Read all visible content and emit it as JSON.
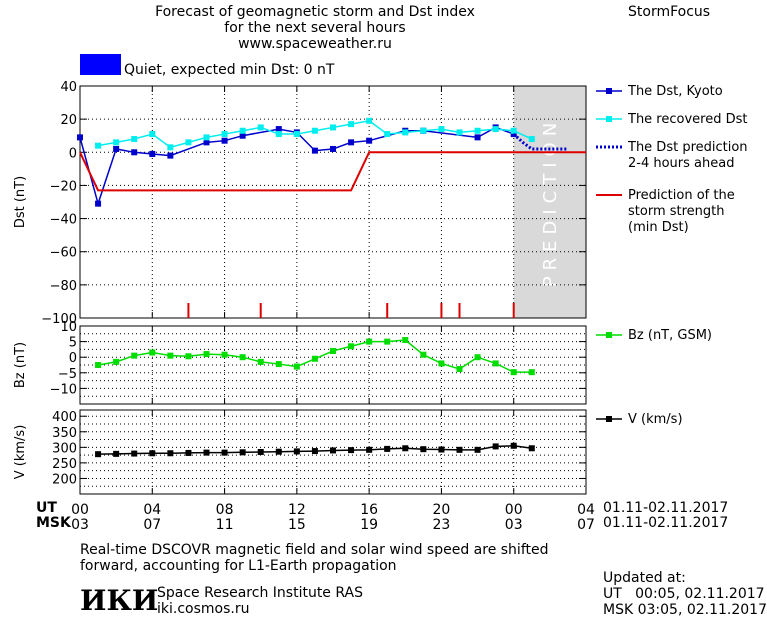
{
  "header": {
    "title_line1": "Forecast of geomagnetic storm and Dst index",
    "title_line2": "for the next several hours",
    "site": "www.spaceweather.ru",
    "brand": "StormFocus",
    "status_color": "#0000FF",
    "status_text": "Quiet, expected min Dst: 0 nT"
  },
  "colors": {
    "dst": "#0000CC",
    "recovered": "#00EEEE",
    "prediction": "#0000CC",
    "storm": "#DD0000",
    "bz": "#00DD00",
    "v": "#000000",
    "prediction_band": "#D9D9D9"
  },
  "legend": {
    "dst": "The Dst, Kyoto",
    "recovered": "The recovered Dst",
    "prediction_l1": "The Dst prediction",
    "prediction_l2": "2-4 hours ahead",
    "storm_l1": "Prediction of the",
    "storm_l2": "storm strength",
    "storm_l3": "(min Dst)",
    "bz": "Bz (nT, GSM)",
    "v": "V (km/s)"
  },
  "prediction_label": "PREDICTION",
  "time_axis": {
    "ut_label": "UT",
    "msk_label": "MSK",
    "ut_ticks": [
      "00",
      "04",
      "08",
      "12",
      "16",
      "20",
      "00",
      "04"
    ],
    "msk_ticks": [
      "03",
      "07",
      "11",
      "15",
      "19",
      "23",
      "03",
      "07"
    ],
    "tick_hours": [
      0,
      4,
      8,
      12,
      16,
      20,
      24,
      28
    ],
    "ut_range": "01.11-02.11.2017",
    "msk_range": "01.11-02.11.2017"
  },
  "footer": {
    "note_l1": "Real-time DSCOVR magnetic field and solar wind speed are shifted",
    "note_l2": "forward, accounting for L1-Earth propagation",
    "logo": "ИКИ",
    "institute": "Space Research Institute RAS",
    "institute_url": "iki.cosmos.ru",
    "updated_label": "Updated at:",
    "updated_ut": "UT   00:05, 02.11.2017",
    "updated_msk": "MSK 03:05, 02.11.2017"
  },
  "chart_data": [
    {
      "type": "line",
      "ylabel": "Dst (nT)",
      "xlim": [
        0,
        28
      ],
      "ylim": [
        -100,
        40
      ],
      "yticks": [
        -100,
        -80,
        -60,
        -40,
        -20,
        0,
        20,
        40
      ],
      "prediction_start_hour": 24,
      "series": [
        {
          "name": "The Dst, Kyoto",
          "x": [
            0,
            1,
            2,
            3,
            4,
            5,
            7,
            8,
            9,
            11,
            12,
            13,
            14,
            15,
            16,
            18,
            19,
            22,
            23,
            24
          ],
          "y": [
            9,
            -31,
            2,
            0,
            -1,
            -2,
            6,
            7,
            10,
            14,
            12,
            1,
            2,
            6,
            7,
            13,
            13,
            9,
            15,
            11
          ]
        },
        {
          "name": "The recovered Dst",
          "x": [
            1,
            2,
            3,
            4,
            5,
            6,
            7,
            8,
            9,
            10,
            11,
            12,
            13,
            14,
            15,
            16,
            17,
            18,
            19,
            20,
            21,
            22,
            23,
            24,
            25
          ],
          "y": [
            4,
            6,
            8,
            11,
            3,
            6,
            9,
            11,
            13,
            15,
            11,
            11,
            13,
            15,
            17,
            19,
            11,
            12,
            13,
            14,
            12,
            13,
            14,
            13,
            8
          ]
        },
        {
          "name": "The Dst prediction",
          "x": [
            24,
            24.5,
            25,
            26,
            27
          ],
          "y": [
            11,
            6,
            2,
            2,
            2
          ]
        },
        {
          "name": "Prediction of the storm strength",
          "x": [
            0,
            1,
            15,
            16,
            28
          ],
          "y": [
            0,
            -23,
            -23,
            0,
            0
          ]
        }
      ],
      "storm_marks_hours": [
        6,
        10,
        17,
        20,
        21,
        24
      ]
    },
    {
      "type": "line",
      "ylabel": "Bz (nT)",
      "xlim": [
        0,
        28
      ],
      "ylim": [
        -15,
        10
      ],
      "yticks": [
        -10,
        -5,
        0,
        5,
        10
      ],
      "series": [
        {
          "name": "Bz (nT, GSM)",
          "x": [
            1,
            2,
            3,
            4,
            5,
            6,
            7,
            8,
            9,
            10,
            11,
            12,
            13,
            14,
            15,
            16,
            17,
            18,
            19,
            20,
            21,
            22,
            23,
            24,
            25
          ],
          "y": [
            -2.5,
            -1.5,
            0.5,
            1.5,
            0.5,
            0.3,
            1,
            0.8,
            0,
            -1.5,
            -2.2,
            -3,
            -0.5,
            2,
            3.5,
            5,
            5,
            5.5,
            0.8,
            -2,
            -3.8,
            0,
            -2,
            -4.8,
            -4.8
          ]
        }
      ]
    },
    {
      "type": "line",
      "ylabel": "V (km/s)",
      "xlim": [
        0,
        28
      ],
      "ylim": [
        150,
        420
      ],
      "yticks": [
        200,
        250,
        300,
        350,
        400
      ],
      "series": [
        {
          "name": "V (km/s)",
          "x": [
            1,
            2,
            3,
            4,
            5,
            6,
            7,
            8,
            9,
            10,
            11,
            12,
            13,
            14,
            15,
            16,
            17,
            18,
            19,
            20,
            21,
            22,
            23,
            24,
            25
          ],
          "y": [
            278,
            279,
            280,
            281,
            281,
            282,
            283,
            283,
            284,
            285,
            286,
            287,
            288,
            290,
            291,
            292,
            295,
            297,
            294,
            293,
            292,
            292,
            303,
            305,
            297
          ]
        }
      ]
    }
  ]
}
